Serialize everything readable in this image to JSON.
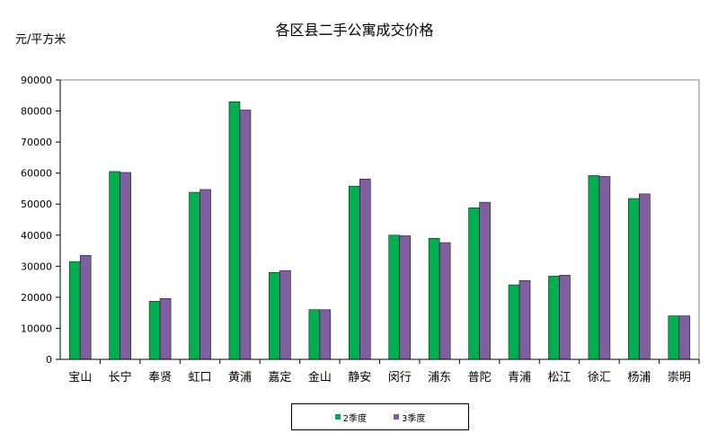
{
  "chart_data": {
    "type": "bar",
    "title": "各区县二手公寓成交价格",
    "ylabel": "元/平方米",
    "xlabel": "",
    "ylim": [
      0,
      90000
    ],
    "yticks": [
      0,
      10000,
      20000,
      30000,
      40000,
      50000,
      60000,
      70000,
      80000,
      90000
    ],
    "grid": false,
    "legend_position": "bottom",
    "categories": [
      "宝山",
      "长宁",
      "奉贤",
      "虹口",
      "黄浦",
      "嘉定",
      "金山",
      "静安",
      "闵行",
      "浦东",
      "普陀",
      "青浦",
      "松江",
      "徐汇",
      "杨浦",
      "崇明"
    ],
    "series": [
      {
        "name": "2季度",
        "color": "#00b050",
        "values": [
          31500,
          60500,
          18700,
          53800,
          83000,
          28000,
          16000,
          55800,
          40000,
          39000,
          48800,
          24000,
          26800,
          59200,
          51800,
          14000
        ]
      },
      {
        "name": "3季度",
        "color": "#7f5f9f",
        "values": [
          33500,
          60200,
          19600,
          54700,
          80300,
          28600,
          16000,
          58100,
          39800,
          37600,
          50600,
          25400,
          27100,
          58900,
          53300,
          14000
        ]
      }
    ]
  }
}
